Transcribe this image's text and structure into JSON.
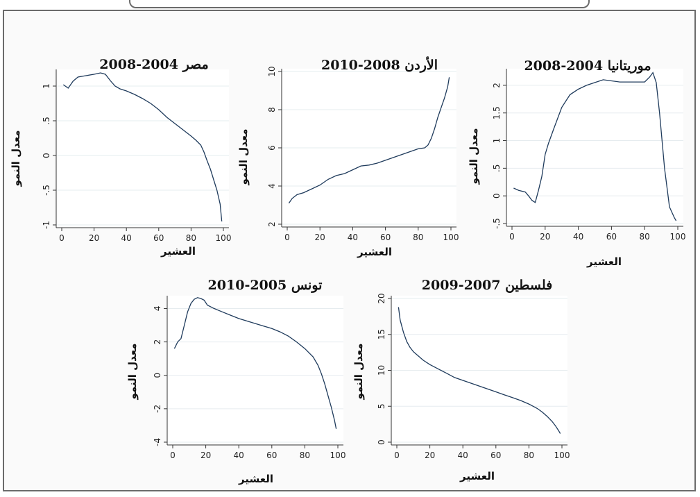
{
  "chart_data": [
    {
      "type": "line",
      "title": "مصر 2004-2008",
      "xlabel": "العشير",
      "ylabel": "معدل النمو",
      "xlim": [
        0,
        100
      ],
      "ylim": [
        -1,
        1.2
      ],
      "xticks": [
        0,
        20,
        40,
        60,
        80,
        100
      ],
      "yticks": [
        -1,
        -0.5,
        0,
        0.5,
        1
      ],
      "ytick_labels": [
        "-1",
        "-.5",
        "0",
        ".5",
        "1"
      ],
      "x": [
        1,
        4,
        7,
        10,
        15,
        20,
        24,
        27,
        30,
        33,
        36,
        40,
        45,
        50,
        55,
        60,
        65,
        70,
        75,
        80,
        83,
        86,
        88,
        90,
        92,
        94,
        96,
        98,
        99
      ],
      "y": [
        1.02,
        0.97,
        1.07,
        1.13,
        1.15,
        1.17,
        1.19,
        1.17,
        1.08,
        1.0,
        0.96,
        0.93,
        0.88,
        0.82,
        0.75,
        0.66,
        0.55,
        0.46,
        0.37,
        0.28,
        0.22,
        0.15,
        0.05,
        -0.08,
        -0.2,
        -0.35,
        -0.5,
        -0.7,
        -0.95
      ]
    },
    {
      "type": "line",
      "title": "الأردن 2008-2010",
      "xlabel": "العشير",
      "ylabel": "معدل النمو",
      "xlim": [
        0,
        100
      ],
      "ylim": [
        2,
        10
      ],
      "xticks": [
        0,
        20,
        40,
        60,
        80,
        100
      ],
      "yticks": [
        2,
        4,
        6,
        8,
        10
      ],
      "ytick_labels": [
        "2",
        "4",
        "6",
        "8",
        "10"
      ],
      "x": [
        1,
        3,
        6,
        10,
        15,
        20,
        25,
        30,
        35,
        40,
        45,
        50,
        55,
        60,
        65,
        70,
        75,
        80,
        84,
        86,
        88,
        90,
        92,
        94,
        96,
        98,
        99
      ],
      "y": [
        3.1,
        3.35,
        3.55,
        3.65,
        3.85,
        4.05,
        4.35,
        4.55,
        4.65,
        4.85,
        5.05,
        5.1,
        5.2,
        5.35,
        5.5,
        5.65,
        5.8,
        5.95,
        6.0,
        6.15,
        6.5,
        7.0,
        7.6,
        8.1,
        8.6,
        9.2,
        9.7
      ]
    },
    {
      "type": "line",
      "title": "موريتانيا 2004-2008",
      "xlabel": "العشير",
      "ylabel": "معدل النمو",
      "xlim": [
        0,
        100
      ],
      "ylim": [
        -0.5,
        2.25
      ],
      "xticks": [
        0,
        20,
        40,
        60,
        80,
        100
      ],
      "yticks": [
        -0.5,
        0,
        0.5,
        1,
        1.5,
        2
      ],
      "ytick_labels": [
        "-.5",
        "0",
        ".5",
        "1",
        "1.5",
        "2"
      ],
      "x": [
        1,
        4,
        8,
        10,
        12,
        14,
        16,
        18,
        20,
        22,
        25,
        30,
        35,
        40,
        45,
        50,
        55,
        60,
        65,
        70,
        75,
        80,
        83,
        85,
        87,
        89,
        92,
        95,
        98,
        99
      ],
      "y": [
        0.14,
        0.1,
        0.07,
        0.0,
        -0.08,
        -0.12,
        0.1,
        0.35,
        0.75,
        0.95,
        1.2,
        1.6,
        1.83,
        1.93,
        2.0,
        2.05,
        2.1,
        2.08,
        2.06,
        2.06,
        2.06,
        2.06,
        2.15,
        2.23,
        2.05,
        1.5,
        0.5,
        -0.2,
        -0.4,
        -0.45
      ]
    },
    {
      "type": "line",
      "title": "تونس 2005-2010",
      "xlabel": "العشير",
      "ylabel": "معدل النمو",
      "xlim": [
        0,
        100
      ],
      "ylim": [
        -4,
        4.6
      ],
      "xticks": [
        0,
        20,
        40,
        60,
        80,
        100
      ],
      "yticks": [
        -4,
        -2,
        0,
        2,
        4
      ],
      "ytick_labels": [
        "-4",
        "-2",
        "0",
        "2",
        "4"
      ],
      "x": [
        1,
        3,
        5,
        7,
        9,
        11,
        13,
        15,
        17,
        19,
        21,
        25,
        30,
        35,
        40,
        45,
        50,
        55,
        60,
        65,
        70,
        75,
        80,
        85,
        88,
        90,
        92,
        94,
        96,
        98,
        99
      ],
      "y": [
        1.6,
        2.0,
        2.2,
        3.0,
        3.8,
        4.3,
        4.55,
        4.65,
        4.6,
        4.5,
        4.2,
        4.0,
        3.8,
        3.6,
        3.4,
        3.25,
        3.1,
        2.95,
        2.8,
        2.6,
        2.35,
        2.0,
        1.6,
        1.1,
        0.6,
        0.1,
        -0.5,
        -1.2,
        -1.9,
        -2.7,
        -3.2
      ]
    },
    {
      "type": "line",
      "title": "فلسطين 2007-2009",
      "xlabel": "العشير",
      "ylabel": "معدل النمو",
      "xlim": [
        0,
        100
      ],
      "ylim": [
        0,
        20
      ],
      "xticks": [
        0,
        20,
        40,
        60,
        80,
        100
      ],
      "yticks": [
        0,
        5,
        10,
        15,
        20
      ],
      "ytick_labels": [
        "0",
        "5",
        "10",
        "15",
        "20"
      ],
      "x": [
        1,
        2,
        4,
        6,
        8,
        10,
        13,
        16,
        20,
        25,
        30,
        35,
        40,
        45,
        50,
        55,
        60,
        65,
        70,
        75,
        80,
        85,
        88,
        91,
        94,
        96,
        98,
        99
      ],
      "y": [
        18.8,
        17.0,
        15.3,
        14.0,
        13.2,
        12.6,
        12.0,
        11.4,
        10.8,
        10.2,
        9.6,
        9.0,
        8.6,
        8.2,
        7.8,
        7.4,
        7.0,
        6.6,
        6.2,
        5.8,
        5.3,
        4.7,
        4.2,
        3.6,
        2.9,
        2.3,
        1.6,
        1.2
      ]
    }
  ]
}
